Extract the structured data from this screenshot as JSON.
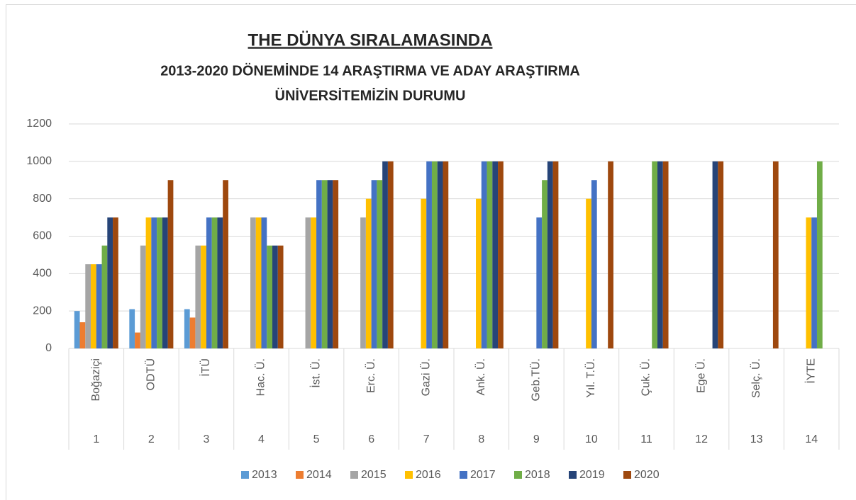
{
  "chart_data": {
    "type": "bar",
    "title": "THE DÜNYA SIRALAMASINDA",
    "subtitle": [
      "2013-2020 DÖNEMİNDE 14 ARAŞTIRMA VE ADAY ARAŞTIRMA",
      "ÜNİVERSİTEMİZİN DURUMU"
    ],
    "categories": [
      "Boğaziçi",
      "ODTÜ",
      "İTÜ",
      "Hac. Ü.",
      "İst. Ü.",
      "Erc. Ü.",
      "Gazi Ü.",
      "Ank. Ü.",
      "Geb.TÜ.",
      "Yıl. T.Ü.",
      "Çuk. Ü.",
      "Ege Ü.",
      "Selç. Ü.",
      "İYTE"
    ],
    "category_numbers": [
      1,
      2,
      3,
      4,
      5,
      6,
      7,
      8,
      9,
      10,
      11,
      12,
      13,
      14
    ],
    "series": [
      {
        "name": "2013",
        "color": "#5b9bd5",
        "values": [
          200,
          210,
          210,
          null,
          null,
          null,
          null,
          null,
          null,
          null,
          null,
          null,
          null,
          null
        ]
      },
      {
        "name": "2014",
        "color": "#ed7d31",
        "values": [
          140,
          85,
          165,
          null,
          null,
          null,
          null,
          null,
          null,
          null,
          null,
          null,
          null,
          null
        ]
      },
      {
        "name": "2015",
        "color": "#a5a5a5",
        "values": [
          450,
          550,
          550,
          700,
          700,
          700,
          null,
          null,
          null,
          null,
          null,
          null,
          null,
          null
        ]
      },
      {
        "name": "2016",
        "color": "#ffc000",
        "values": [
          450,
          700,
          550,
          700,
          700,
          800,
          800,
          800,
          null,
          800,
          null,
          null,
          null,
          700
        ]
      },
      {
        "name": "2017",
        "color": "#4472c4",
        "values": [
          450,
          700,
          700,
          700,
          900,
          900,
          1000,
          1000,
          700,
          900,
          null,
          null,
          null,
          700
        ]
      },
      {
        "name": "2018",
        "color": "#70ad47",
        "values": [
          550,
          700,
          700,
          550,
          900,
          900,
          1000,
          1000,
          900,
          null,
          1000,
          null,
          null,
          1000
        ]
      },
      {
        "name": "2019",
        "color": "#264478",
        "values": [
          700,
          700,
          700,
          550,
          900,
          1000,
          1000,
          1000,
          1000,
          null,
          1000,
          1000,
          null,
          null
        ]
      },
      {
        "name": "2020",
        "color": "#9e480e",
        "values": [
          700,
          900,
          900,
          550,
          900,
          1000,
          1000,
          1000,
          1000,
          1000,
          1000,
          1000,
          1000,
          null
        ]
      }
    ],
    "ylim": [
      0,
      1200
    ],
    "yticks": [
      0,
      200,
      400,
      600,
      800,
      1000,
      1200
    ],
    "grid": true,
    "legend": "bottom"
  }
}
